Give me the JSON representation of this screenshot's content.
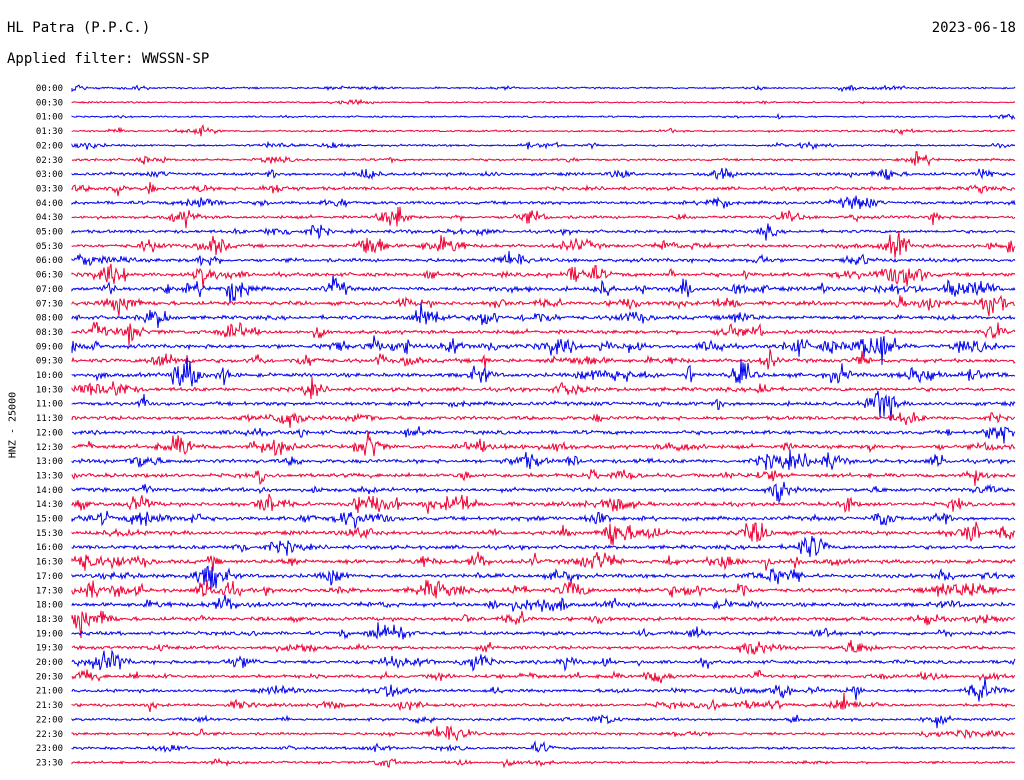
{
  "header": {
    "station": "HL Patra (P.P.C.)",
    "filter": "Applied filter: WWSSN-SP",
    "date": "2023-06-18"
  },
  "chart_data": {
    "type": "line",
    "title": "HL Patra (P.P.C.)",
    "ylabel": "HNZ - 25000",
    "row_labels": [
      "00:00",
      "00:30",
      "01:00",
      "01:30",
      "02:00",
      "02:30",
      "03:00",
      "03:30",
      "04:00",
      "04:30",
      "05:00",
      "05:30",
      "06:00",
      "06:30",
      "07:00",
      "07:30",
      "08:00",
      "08:30",
      "09:00",
      "09:30",
      "10:00",
      "10:30",
      "11:00",
      "11:30",
      "12:00",
      "12:30",
      "13:00",
      "13:30",
      "14:00",
      "14:30",
      "15:00",
      "15:30",
      "16:00",
      "16:30",
      "17:00",
      "17:30",
      "18:00",
      "18:30",
      "19:00",
      "19:30",
      "20:00",
      "20:30",
      "21:00",
      "21:30",
      "22:00",
      "22:30",
      "23:00",
      "23:30"
    ],
    "row_colors": [
      "#0000ee",
      "#ee0033"
    ],
    "grid": false,
    "activity_level_by_row": [
      0.25,
      0.2,
      0.22,
      0.3,
      0.35,
      0.45,
      0.7,
      0.85,
      0.8,
      0.7,
      0.75,
      0.85,
      0.9,
      0.95,
      1.0,
      1.0,
      1.0,
      1.0,
      1.0,
      1.0,
      1.0,
      1.0,
      1.0,
      1.0,
      1.0,
      1.0,
      1.0,
      1.0,
      1.0,
      1.0,
      1.0,
      1.0,
      1.0,
      1.0,
      1.0,
      1.0,
      1.0,
      0.95,
      0.9,
      0.85,
      0.8,
      0.75,
      0.7,
      0.65,
      0.6,
      0.55,
      0.5,
      0.45
    ]
  }
}
